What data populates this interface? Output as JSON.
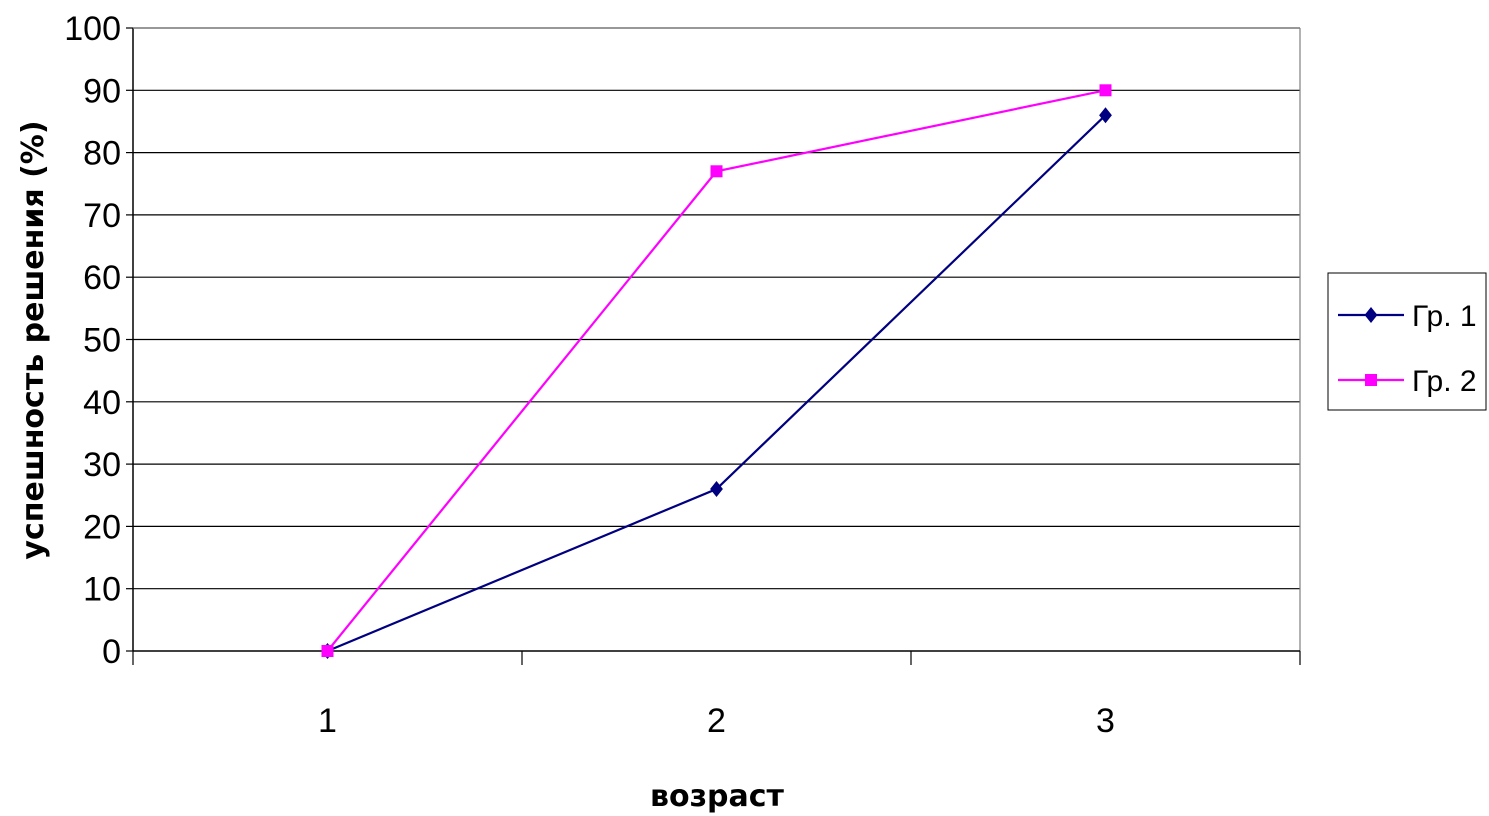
{
  "chart_data": {
    "type": "line",
    "title": "",
    "xlabel": "возраст",
    "ylabel": "успешность решения (%)",
    "categories": [
      "1",
      "2",
      "3"
    ],
    "ylim": [
      0,
      100
    ],
    "yticks": [
      0,
      10,
      20,
      30,
      40,
      50,
      60,
      70,
      80,
      90,
      100
    ],
    "grid": true,
    "legend_position": "right",
    "series": [
      {
        "name": "Гр. 1",
        "values": [
          0,
          26,
          86
        ],
        "color": "#000080",
        "marker": "diamond"
      },
      {
        "name": "Гр. 2",
        "values": [
          0,
          77,
          90
        ],
        "color": "#ff00ff",
        "marker": "square"
      }
    ]
  }
}
